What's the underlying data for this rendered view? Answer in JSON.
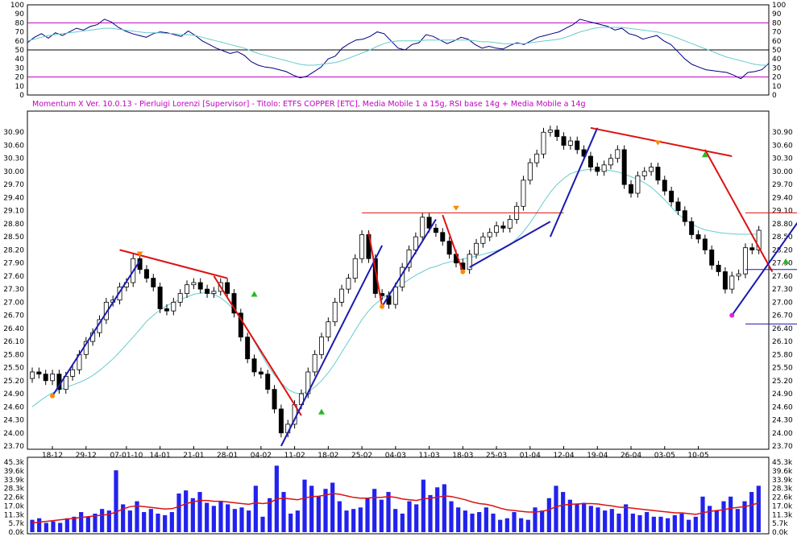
{
  "header": {
    "title": "Momentum X   Ver. 10.0.13  -  Pierluigi Lorenzi  [Supervisor] - Titolo: ETFS COPPER  [ETC],   Media Mobile 1 a 15g,   RSI base 14g + Media Mobile a 14g"
  },
  "colors": {
    "rsi_line": "#000080",
    "rsi_ma": "#66cccc",
    "rsi_bands": "#c000c0",
    "price_ma": "#66cccc",
    "uptrend": "#1a1ab0",
    "downtrend": "#dd1111",
    "volume_bar": "#2222ee",
    "volume_ma": "#dd1111",
    "candle_up": "#ffffff",
    "candle_down": "#000000",
    "date_highlight": "#dd0000"
  },
  "chart_data": [
    {
      "name": "rsi",
      "type": "line",
      "ylim": [
        0,
        100
      ],
      "ticks": [
        "0",
        "10",
        "20",
        "30",
        "40",
        "50",
        "60",
        "70",
        "80",
        "90",
        "100"
      ],
      "bands": [
        20,
        50,
        80
      ],
      "series": [
        {
          "key": "rsi",
          "values": [
            58,
            64,
            68,
            63,
            69,
            66,
            70,
            74,
            72,
            76,
            78,
            84,
            81,
            75,
            71,
            68,
            66,
            64,
            68,
            70,
            69,
            67,
            65,
            71,
            66,
            60,
            56,
            52,
            49,
            46,
            48,
            44,
            37,
            33,
            31,
            30,
            28,
            26,
            22,
            19,
            21,
            26,
            31,
            40,
            43,
            52,
            57,
            61,
            62,
            65,
            70,
            68,
            60,
            52,
            50,
            56,
            58,
            67,
            65,
            61,
            57,
            60,
            64,
            62,
            56,
            52,
            54,
            52,
            51,
            55,
            58,
            56,
            60,
            64,
            66,
            68,
            70,
            74,
            78,
            84,
            82,
            80,
            78,
            76,
            72,
            74,
            68,
            66,
            62,
            64,
            66,
            60,
            56,
            48,
            40,
            34,
            31,
            28,
            27,
            26,
            25,
            22,
            18,
            25,
            26,
            28,
            35
          ]
        },
        {
          "key": "ma",
          "values": [
            60,
            62,
            64,
            66,
            67,
            68,
            69,
            70,
            71,
            72,
            73,
            74,
            74,
            73,
            72,
            71,
            70,
            69,
            69,
            69,
            68,
            68,
            67,
            67,
            66,
            64,
            62,
            60,
            58,
            56,
            54,
            52,
            49,
            46,
            44,
            42,
            40,
            38,
            36,
            34,
            33,
            33,
            34,
            35,
            36,
            38,
            41,
            44,
            47,
            50,
            54,
            57,
            59,
            60,
            60,
            60,
            60,
            61,
            61,
            61,
            61,
            61,
            61,
            61,
            60,
            59,
            59,
            58,
            57,
            57,
            57,
            57,
            58,
            59,
            60,
            61,
            62,
            64,
            67,
            70,
            72,
            74,
            75,
            75,
            75,
            75,
            74,
            73,
            72,
            71,
            70,
            68,
            66,
            63,
            60,
            57,
            54,
            51,
            48,
            45,
            42,
            40,
            38,
            36,
            34,
            33,
            33
          ]
        }
      ]
    },
    {
      "name": "price",
      "type": "candlestick",
      "ylim": [
        23.7,
        31.2
      ],
      "yticks": [
        "23.70",
        "24.00",
        "24.30",
        "24.60",
        "24.90",
        "25.20",
        "25.50",
        "25.80",
        "26.10",
        "26.40",
        "26.70",
        "27.00",
        "27.30",
        "27.60",
        "27.90",
        "28.20",
        "28.50",
        "28.80",
        "29.10",
        "29.40",
        "29.70",
        "30.00",
        "30.30",
        "30.60",
        "30.90"
      ],
      "xticks": [
        {
          "i": 3,
          "label": "18-12"
        },
        {
          "i": 8,
          "label": "29-12"
        },
        {
          "i": 14,
          "label": "07-01-10",
          "highlight": true
        },
        {
          "i": 19,
          "label": "14-01"
        },
        {
          "i": 24,
          "label": "21-01"
        },
        {
          "i": 29,
          "label": "28-01"
        },
        {
          "i": 34,
          "label": "04-02"
        },
        {
          "i": 39,
          "label": "11-02"
        },
        {
          "i": 44,
          "label": "18-02"
        },
        {
          "i": 49,
          "label": "25-02"
        },
        {
          "i": 54,
          "label": "04-03"
        },
        {
          "i": 59,
          "label": "11-03"
        },
        {
          "i": 64,
          "label": "18-03"
        },
        {
          "i": 69,
          "label": "25-03"
        },
        {
          "i": 74,
          "label": "01-04"
        },
        {
          "i": 79,
          "label": "12-04"
        },
        {
          "i": 84,
          "label": "19-04"
        },
        {
          "i": 89,
          "label": "26-04"
        },
        {
          "i": 94,
          "label": "03-05"
        },
        {
          "i": 99,
          "label": "10-05"
        }
      ],
      "close": [
        25.4,
        25.35,
        25.2,
        25.35,
        25.0,
        25.3,
        25.45,
        25.8,
        26.1,
        26.3,
        26.6,
        27.0,
        27.05,
        27.35,
        27.45,
        28.0,
        27.75,
        27.55,
        27.35,
        26.85,
        26.8,
        27.0,
        27.2,
        27.4,
        27.45,
        27.3,
        27.2,
        27.25,
        27.45,
        27.2,
        26.75,
        26.2,
        25.7,
        25.4,
        25.35,
        25.0,
        24.55,
        24.0,
        24.2,
        24.65,
        24.9,
        25.4,
        25.8,
        26.2,
        26.55,
        27.0,
        27.3,
        27.55,
        28.0,
        28.55,
        28.0,
        27.2,
        27.15,
        26.95,
        27.35,
        27.8,
        28.2,
        28.5,
        28.95,
        28.7,
        28.6,
        28.4,
        28.1,
        27.9,
        27.75,
        28.1,
        28.35,
        28.5,
        28.6,
        28.75,
        28.7,
        28.9,
        29.2,
        29.8,
        30.2,
        30.4,
        30.9,
        30.95,
        30.8,
        30.6,
        30.7,
        30.5,
        30.35,
        30.1,
        30.0,
        30.15,
        30.3,
        30.5,
        29.7,
        29.5,
        29.9,
        30.0,
        30.1,
        29.8,
        29.55,
        29.3,
        29.1,
        28.85,
        28.55,
        28.45,
        28.2,
        27.85,
        27.7,
        27.3,
        27.6,
        27.65,
        28.25,
        28.2,
        28.65
      ],
      "ma": [
        24.6,
        24.72,
        24.83,
        24.92,
        24.98,
        25.05,
        25.1,
        25.16,
        25.23,
        25.32,
        25.43,
        25.56,
        25.7,
        25.86,
        26.03,
        26.2,
        26.38,
        26.56,
        26.7,
        26.82,
        26.92,
        27.0,
        27.06,
        27.12,
        27.18,
        27.21,
        27.22,
        27.18,
        27.1,
        26.98,
        26.82,
        26.62,
        26.38,
        26.1,
        25.82,
        25.55,
        25.33,
        25.15,
        25.0,
        24.92,
        24.9,
        24.95,
        25.05,
        25.2,
        25.38,
        25.6,
        25.85,
        26.1,
        26.35,
        26.6,
        26.8,
        26.96,
        27.08,
        27.2,
        27.32,
        27.42,
        27.52,
        27.62,
        27.7,
        27.78,
        27.82,
        27.88,
        27.92,
        27.96,
        27.99,
        28.02,
        28.06,
        28.1,
        28.14,
        28.18,
        28.24,
        28.32,
        28.45,
        28.62,
        28.82,
        29.05,
        29.3,
        29.52,
        29.7,
        29.84,
        29.95,
        30.0,
        30.03,
        30.05,
        30.05,
        30.04,
        30.02,
        29.99,
        29.94,
        29.88,
        29.82,
        29.74,
        29.64,
        29.5,
        29.35,
        29.18,
        29.02,
        28.9,
        28.8,
        28.72,
        28.66,
        28.63,
        28.6,
        28.58,
        28.57,
        28.56,
        28.56,
        28.56,
        28.56
      ]
    },
    {
      "name": "volume",
      "type": "bar",
      "ylim": [
        0,
        45300
      ],
      "yticks": [
        "0.0k",
        "5.7k",
        "11.3k",
        "17.0k",
        "22.6k",
        "28.3k",
        "33.9k",
        "39.6k",
        "45.3k"
      ],
      "values": [
        8000,
        9000,
        6000,
        7000,
        6000,
        9000,
        10000,
        13000,
        10000,
        12000,
        15000,
        14000,
        40000,
        18000,
        14000,
        20000,
        13000,
        15000,
        12000,
        11000,
        13000,
        25000,
        27000,
        22000,
        26000,
        19000,
        17000,
        20000,
        18000,
        15000,
        16000,
        14000,
        30000,
        10000,
        22000,
        43000,
        26000,
        12000,
        14000,
        34000,
        30000,
        23000,
        28000,
        32000,
        20000,
        14000,
        15000,
        16000,
        22000,
        28000,
        21000,
        26000,
        15000,
        12000,
        20000,
        18000,
        34000,
        24000,
        29000,
        31000,
        20000,
        16000,
        14000,
        12000,
        13000,
        16000,
        12000,
        8000,
        9000,
        13000,
        9000,
        8000,
        16000,
        14000,
        22000,
        30000,
        26000,
        21000,
        18000,
        19000,
        17000,
        16000,
        14000,
        15000,
        12000,
        18000,
        12000,
        11000,
        13000,
        10000,
        10000,
        9000,
        11000,
        12000,
        8000,
        10000,
        23000,
        17000,
        14000,
        20000,
        23000,
        15000,
        20000,
        26000,
        30000
      ],
      "ma": [
        6000,
        6500,
        7000,
        7500,
        8000,
        8500,
        9000,
        9500,
        10000,
        10500,
        11000,
        11500,
        13000,
        15000,
        16500,
        17000,
        16500,
        16000,
        15500,
        15000,
        15200,
        16500,
        18500,
        19500,
        20500,
        20500,
        20000,
        20000,
        19500,
        19000,
        18500,
        18000,
        19000,
        18500,
        19000,
        21500,
        22000,
        21500,
        21000,
        22000,
        23000,
        23200,
        24000,
        25000,
        24500,
        23500,
        22500,
        22000,
        22000,
        22500,
        22500,
        23000,
        22500,
        21500,
        21000,
        20500,
        21500,
        22000,
        22500,
        23500,
        23000,
        22000,
        21000,
        19500,
        18500,
        18000,
        17000,
        15500,
        14500,
        14000,
        13500,
        13000,
        13000,
        13500,
        14500,
        16500,
        17500,
        18000,
        18200,
        18500,
        18500,
        18200,
        17500,
        17000,
        16200,
        16000,
        15500,
        15000,
        14500,
        14000,
        13500,
        13000,
        12500,
        12500,
        12000,
        11500,
        12500,
        13500,
        14000,
        14500,
        15500,
        16000,
        16500,
        17500,
        19000
      ]
    },
    {
      "name": "trendlines",
      "type": "annotations",
      "lines": [
        {
          "kind": "up",
          "from": [
            3,
            24.85
          ],
          "to": [
            16,
            27.95
          ]
        },
        {
          "kind": "down",
          "from": [
            13,
            28.2
          ],
          "to": [
            29,
            27.55
          ]
        },
        {
          "kind": "down",
          "from": [
            27,
            27.6
          ],
          "to": [
            40,
            24.4
          ]
        },
        {
          "kind": "up",
          "from": [
            37,
            23.7
          ],
          "to": [
            52,
            28.3
          ]
        },
        {
          "kind": "down",
          "from": [
            50,
            28.6
          ],
          "to": [
            52,
            26.9
          ]
        },
        {
          "kind": "up",
          "from": [
            52,
            26.9
          ],
          "to": [
            60,
            28.9
          ]
        },
        {
          "kind": "horizontal-down",
          "from": [
            49,
            29.05
          ],
          "to": [
            79,
            29.05
          ]
        },
        {
          "kind": "down",
          "from": [
            61,
            29.0
          ],
          "to": [
            64,
            27.7
          ]
        },
        {
          "kind": "up",
          "from": [
            65,
            27.8
          ],
          "to": [
            77,
            28.85
          ]
        },
        {
          "kind": "up",
          "from": [
            77,
            28.5
          ],
          "to": [
            84,
            31.0
          ]
        },
        {
          "kind": "down",
          "from": [
            83,
            31.0
          ],
          "to": [
            104,
            30.35
          ]
        },
        {
          "kind": "down",
          "from": [
            100,
            30.5
          ],
          "to": [
            110,
            27.7
          ]
        },
        {
          "kind": "up",
          "from": [
            104,
            26.7
          ],
          "to": [
            115,
            29.1
          ]
        },
        {
          "kind": "horizontal-down",
          "from": [
            106,
            29.05
          ],
          "to": [
            115,
            29.05
          ]
        },
        {
          "kind": "horizontal-up",
          "from": [
            106,
            27.75
          ],
          "to": [
            115,
            27.75
          ]
        },
        {
          "kind": "horizontal-up",
          "from": [
            106,
            26.5
          ],
          "to": [
            115,
            26.5
          ]
        }
      ],
      "markers": [
        {
          "shape": "tri-down",
          "color": "#ff8800",
          "at": [
            16,
            28.05
          ]
        },
        {
          "shape": "tri-down",
          "color": "#ff8800",
          "at": [
            63,
            29.1
          ]
        },
        {
          "shape": "tri-down",
          "color": "#ff8800",
          "at": [
            93,
            30.6
          ]
        },
        {
          "shape": "tri-up",
          "color": "#22bb22",
          "at": [
            33,
            27.2
          ]
        },
        {
          "shape": "tri-up",
          "color": "#22bb22",
          "at": [
            43,
            24.5
          ]
        },
        {
          "shape": "tri-up",
          "color": "#22bb22",
          "at": [
            100,
            30.4
          ]
        },
        {
          "shape": "tri-up",
          "color": "#22bb22",
          "at": [
            112,
            27.95
          ]
        },
        {
          "shape": "dot",
          "color": "#ff8800",
          "at": [
            3,
            24.85
          ]
        },
        {
          "shape": "dot",
          "color": "#ff8800",
          "at": [
            52,
            26.9
          ]
        },
        {
          "shape": "dot",
          "color": "#ff8800",
          "at": [
            64,
            27.7
          ]
        },
        {
          "shape": "dot",
          "color": "#dd22dd",
          "at": [
            104,
            26.7
          ]
        }
      ]
    }
  ]
}
